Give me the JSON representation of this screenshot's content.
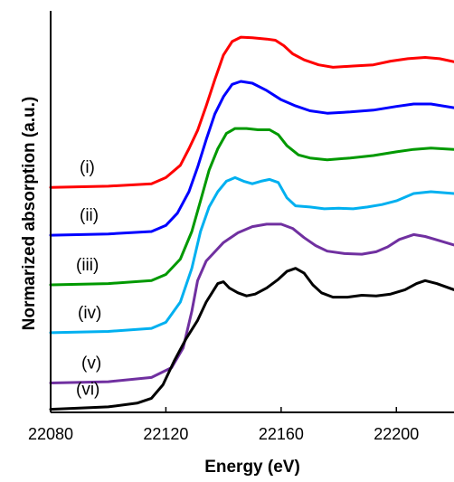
{
  "chart_data": {
    "type": "line",
    "title": "",
    "xlabel": "Energy (eV)",
    "ylabel": "Normarized absorption (a.u.)",
    "xlim": [
      22080,
      22220
    ],
    "xticks": [
      22080,
      22120,
      22160,
      22200
    ],
    "xtick_labels": [
      "22080",
      "22120",
      "22160",
      "22200"
    ],
    "ylim": [
      -0.05,
      6.5
    ],
    "yticks_shown": false,
    "grid": false,
    "series": [
      {
        "name": "(i)",
        "color": "#ff0000",
        "points": [
          [
            22080,
            3.62
          ],
          [
            22100,
            3.64
          ],
          [
            22115,
            3.68
          ],
          [
            22120,
            3.78
          ],
          [
            22125,
            3.98
          ],
          [
            22128,
            4.25
          ],
          [
            22131,
            4.55
          ],
          [
            22134,
            4.95
          ],
          [
            22137,
            5.38
          ],
          [
            22140,
            5.78
          ],
          [
            22143,
            6.0
          ],
          [
            22146,
            6.07
          ],
          [
            22150,
            6.06
          ],
          [
            22155,
            6.04
          ],
          [
            22158,
            6.02
          ],
          [
            22161,
            5.93
          ],
          [
            22164,
            5.8
          ],
          [
            22168,
            5.7
          ],
          [
            22173,
            5.62
          ],
          [
            22178,
            5.58
          ],
          [
            22185,
            5.6
          ],
          [
            22192,
            5.62
          ],
          [
            22198,
            5.68
          ],
          [
            22204,
            5.72
          ],
          [
            22210,
            5.74
          ],
          [
            22215,
            5.72
          ],
          [
            22220,
            5.67
          ]
        ]
      },
      {
        "name": "(ii)",
        "color": "#0000ff",
        "points": [
          [
            22080,
            2.84
          ],
          [
            22100,
            2.86
          ],
          [
            22115,
            2.9
          ],
          [
            22120,
            3.0
          ],
          [
            22124,
            3.2
          ],
          [
            22128,
            3.55
          ],
          [
            22131,
            3.95
          ],
          [
            22134,
            4.4
          ],
          [
            22137,
            4.82
          ],
          [
            22140,
            5.1
          ],
          [
            22143,
            5.3
          ],
          [
            22146,
            5.35
          ],
          [
            22150,
            5.32
          ],
          [
            22155,
            5.2
          ],
          [
            22160,
            5.05
          ],
          [
            22165,
            4.95
          ],
          [
            22170,
            4.87
          ],
          [
            22176,
            4.83
          ],
          [
            22184,
            4.85
          ],
          [
            22192,
            4.88
          ],
          [
            22200,
            4.94
          ],
          [
            22206,
            4.98
          ],
          [
            22212,
            4.98
          ],
          [
            22220,
            4.92
          ]
        ]
      },
      {
        "name": "(iii)",
        "color": "#009900",
        "points": [
          [
            22080,
            2.03
          ],
          [
            22100,
            2.05
          ],
          [
            22115,
            2.1
          ],
          [
            22120,
            2.2
          ],
          [
            22125,
            2.45
          ],
          [
            22129,
            2.9
          ],
          [
            22132,
            3.4
          ],
          [
            22135,
            3.9
          ],
          [
            22138,
            4.25
          ],
          [
            22141,
            4.5
          ],
          [
            22144,
            4.58
          ],
          [
            22148,
            4.58
          ],
          [
            22152,
            4.56
          ],
          [
            22156,
            4.56
          ],
          [
            22159,
            4.48
          ],
          [
            22162,
            4.3
          ],
          [
            22166,
            4.15
          ],
          [
            22170,
            4.1
          ],
          [
            22176,
            4.07
          ],
          [
            22184,
            4.1
          ],
          [
            22192,
            4.14
          ],
          [
            22200,
            4.2
          ],
          [
            22206,
            4.24
          ],
          [
            22212,
            4.26
          ],
          [
            22220,
            4.24
          ]
        ]
      },
      {
        "name": "(iv)",
        "color": "#00b0f0",
        "points": [
          [
            22080,
            1.25
          ],
          [
            22100,
            1.27
          ],
          [
            22115,
            1.32
          ],
          [
            22120,
            1.42
          ],
          [
            22125,
            1.75
          ],
          [
            22129,
            2.3
          ],
          [
            22132,
            2.9
          ],
          [
            22135,
            3.3
          ],
          [
            22138,
            3.55
          ],
          [
            22141,
            3.72
          ],
          [
            22144,
            3.78
          ],
          [
            22147,
            3.72
          ],
          [
            22150,
            3.68
          ],
          [
            22153,
            3.72
          ],
          [
            22156,
            3.75
          ],
          [
            22159,
            3.7
          ],
          [
            22162,
            3.45
          ],
          [
            22165,
            3.32
          ],
          [
            22170,
            3.3
          ],
          [
            22175,
            3.27
          ],
          [
            22180,
            3.28
          ],
          [
            22185,
            3.27
          ],
          [
            22190,
            3.3
          ],
          [
            22195,
            3.34
          ],
          [
            22200,
            3.4
          ],
          [
            22206,
            3.52
          ],
          [
            22212,
            3.55
          ],
          [
            22220,
            3.52
          ]
        ]
      },
      {
        "name": "(v)",
        "color": "#7030a0",
        "points": [
          [
            22080,
            0.43
          ],
          [
            22100,
            0.45
          ],
          [
            22115,
            0.52
          ],
          [
            22122,
            0.68
          ],
          [
            22126,
            1.0
          ],
          [
            22129,
            1.6
          ],
          [
            22131,
            2.1
          ],
          [
            22134,
            2.42
          ],
          [
            22137,
            2.57
          ],
          [
            22140,
            2.72
          ],
          [
            22145,
            2.88
          ],
          [
            22150,
            2.98
          ],
          [
            22155,
            3.02
          ],
          [
            22160,
            3.02
          ],
          [
            22164,
            2.95
          ],
          [
            22168,
            2.8
          ],
          [
            22172,
            2.67
          ],
          [
            22176,
            2.58
          ],
          [
            22182,
            2.54
          ],
          [
            22188,
            2.53
          ],
          [
            22193,
            2.57
          ],
          [
            22197,
            2.65
          ],
          [
            22201,
            2.77
          ],
          [
            22206,
            2.85
          ],
          [
            22210,
            2.82
          ],
          [
            22215,
            2.75
          ],
          [
            22220,
            2.68
          ]
        ]
      },
      {
        "name": "(vi)",
        "color": "#000000",
        "points": [
          [
            22080,
            0.0
          ],
          [
            22090,
            0.02
          ],
          [
            22100,
            0.04
          ],
          [
            22110,
            0.1
          ],
          [
            22115,
            0.18
          ],
          [
            22119,
            0.4
          ],
          [
            22123,
            0.8
          ],
          [
            22127,
            1.15
          ],
          [
            22131,
            1.45
          ],
          [
            22134,
            1.75
          ],
          [
            22136,
            1.9
          ],
          [
            22138,
            2.05
          ],
          [
            22140,
            2.08
          ],
          [
            22142,
            1.98
          ],
          [
            22145,
            1.9
          ],
          [
            22148,
            1.85
          ],
          [
            22151,
            1.88
          ],
          [
            22155,
            1.98
          ],
          [
            22159,
            2.12
          ],
          [
            22162,
            2.25
          ],
          [
            22165,
            2.3
          ],
          [
            22168,
            2.22
          ],
          [
            22171,
            2.03
          ],
          [
            22174,
            1.9
          ],
          [
            22178,
            1.83
          ],
          [
            22183,
            1.83
          ],
          [
            22188,
            1.86
          ],
          [
            22193,
            1.85
          ],
          [
            22198,
            1.88
          ],
          [
            22203,
            1.95
          ],
          [
            22207,
            2.05
          ],
          [
            22210,
            2.1
          ],
          [
            22214,
            2.05
          ],
          [
            22220,
            1.95
          ]
        ]
      }
    ]
  }
}
